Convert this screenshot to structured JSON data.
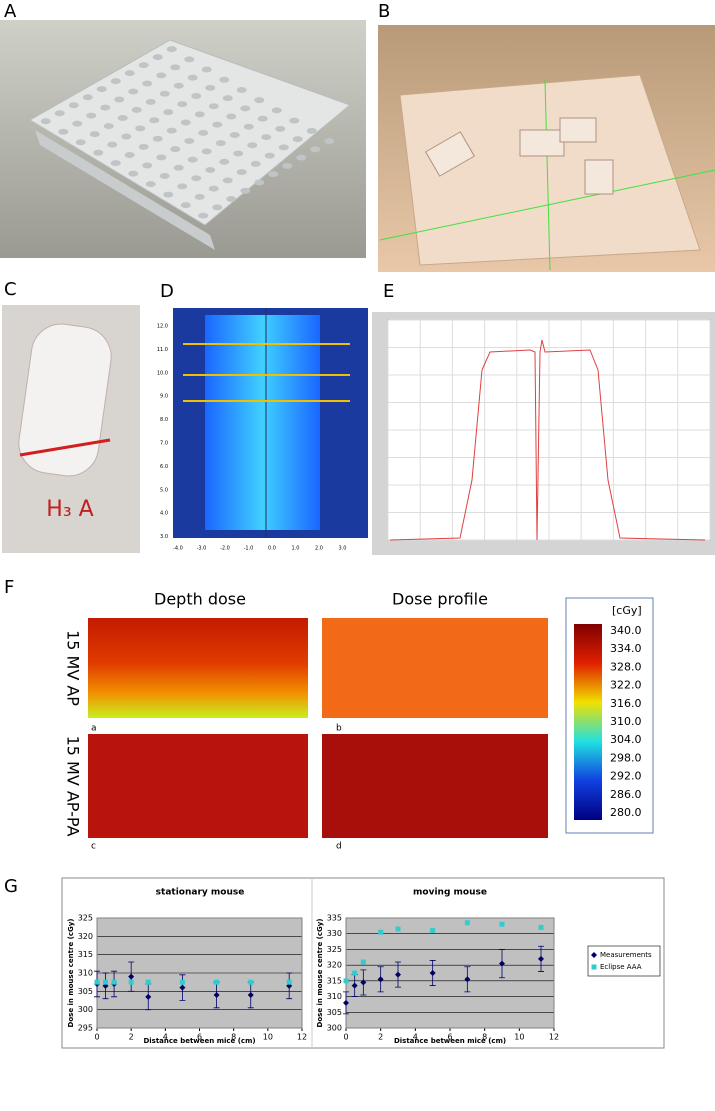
{
  "panel_labels": [
    "A",
    "B",
    "C",
    "D",
    "E",
    "F",
    "G"
  ],
  "panel_c": {
    "tube_label": "H₃ A"
  },
  "panel_d": {
    "xticks": [
      "-4.0",
      "-3.0",
      "-2.0",
      "-1.0",
      "0.0",
      "1.0",
      "2.0",
      "3.0"
    ],
    "yticks": [
      "12.0",
      "11.0",
      "10.0",
      "9.0",
      "8.0",
      "7.0",
      "6.0",
      "5.0",
      "4.0",
      "3.0"
    ]
  },
  "panel_f": {
    "column_titles": [
      "Depth dose",
      "Dose profile"
    ],
    "row_titles": [
      "15 MV AP",
      "15 MV AP-PA"
    ],
    "map_labels": [
      "a",
      "b",
      "c",
      "d"
    ],
    "colorbar": {
      "unit": "[cGy]",
      "ticks": [
        "340.0",
        "334.0",
        "328.0",
        "322.0",
        "316.0",
        "310.0",
        "304.0",
        "298.0",
        "292.0",
        "286.0",
        "280.0"
      ]
    }
  },
  "chart_data": [
    {
      "type": "scatter",
      "title": "stationary mouse",
      "x_label": "Distance between mice (cm)",
      "y_label": "Dose in mouse centre (cGy)",
      "xlim": [
        0,
        12
      ],
      "xticks": [
        0,
        2,
        4,
        6,
        8,
        10,
        12
      ],
      "ylim": [
        295,
        325
      ],
      "yticks": [
        295,
        300,
        305,
        310,
        315,
        320,
        325
      ],
      "grid": true,
      "background": "#c0c0c0",
      "x": [
        0,
        0.5,
        1,
        2,
        3,
        5,
        7,
        9,
        11.25
      ],
      "series": [
        {
          "color": "#000066",
          "marker": "diamond",
          "values": [
            307,
            306.5,
            307,
            309,
            303.5,
            306,
            304,
            304,
            306.5
          ],
          "errors": [
            3.5,
            3.5,
            3.5,
            4,
            3.5,
            3.5,
            3.5,
            3.5,
            3.5
          ]
        },
        {
          "color": "#33cccc",
          "marker": "square",
          "values": [
            307.5,
            307.5,
            307.5,
            307.5,
            307.5,
            307.5,
            307.5,
            307.5,
            307.5
          ]
        }
      ]
    },
    {
      "type": "scatter",
      "title": "moving mouse",
      "x_label": "Distance between mice (cm)",
      "y_label": "Dose in mouse centre (cGy)",
      "xlim": [
        0,
        12
      ],
      "xticks": [
        0,
        2,
        4,
        6,
        8,
        10,
        12
      ],
      "ylim": [
        300,
        335
      ],
      "yticks": [
        300,
        305,
        310,
        315,
        320,
        325,
        330,
        335
      ],
      "grid": true,
      "background": "#c0c0c0",
      "legend": "right",
      "x": [
        0,
        0.5,
        1,
        2,
        3,
        5,
        7,
        9,
        11.25
      ],
      "series": [
        {
          "name": "Measurements",
          "color": "#000066",
          "marker": "diamond",
          "values": [
            308,
            313.5,
            314.5,
            315.5,
            317,
            317.5,
            315.5,
            320.5,
            322
          ],
          "errors": [
            3.5,
            3.5,
            4,
            4,
            4,
            4,
            4,
            4.5,
            4
          ]
        },
        {
          "name": "Eclipse AAA",
          "color": "#33cccc",
          "marker": "square",
          "values": [
            315,
            317.5,
            321,
            330.5,
            331.5,
            331,
            333.5,
            333,
            332
          ]
        }
      ]
    }
  ]
}
